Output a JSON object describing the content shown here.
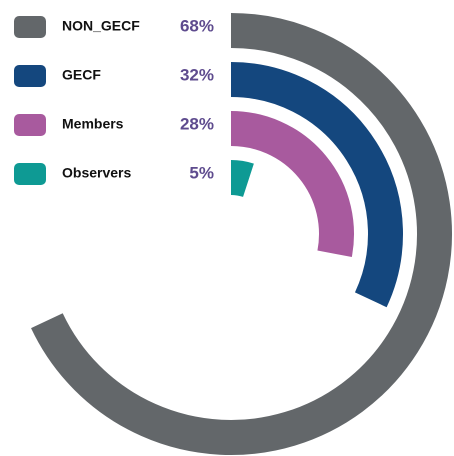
{
  "chart_data": {
    "type": "radial_bar",
    "categories": [
      "NON_GECF",
      "GECF",
      "Members",
      "Observers"
    ],
    "values": [
      68,
      32,
      28,
      5
    ],
    "value_labels": [
      "68%",
      "32%",
      "28%",
      "5%"
    ],
    "colors": [
      "#63676a",
      "#14477e",
      "#a85a9e",
      "#0e9a94"
    ],
    "ylim": [
      0,
      100
    ]
  }
}
